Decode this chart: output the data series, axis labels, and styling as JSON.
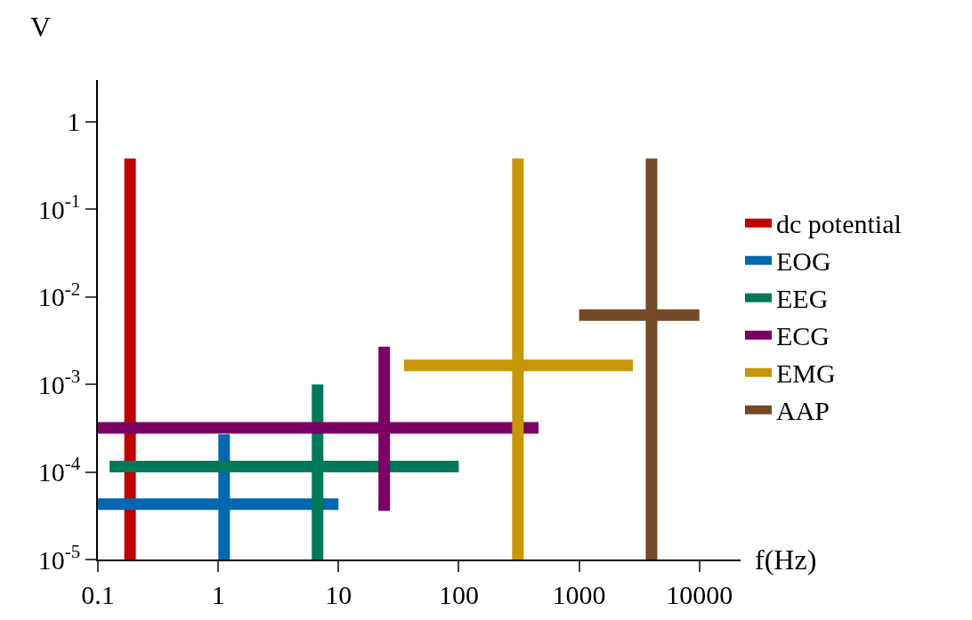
{
  "chart_data": {
    "type": "line",
    "xlabel": "f(Hz)",
    "ylabel": "V",
    "log": "xy",
    "xlim": [
      0.1,
      22000
    ],
    "ylim": [
      1e-05,
      3
    ],
    "xticks": [
      0.1,
      1,
      10,
      100,
      1000,
      10000
    ],
    "yticks": [
      {
        "value": 1e-05,
        "label": "10$^{-5}$"
      },
      {
        "value": 0.0001,
        "label": "10$^{-4}$"
      },
      {
        "value": 0.001,
        "label": "10$^{-3}$"
      },
      {
        "value": 0.01,
        "label": "10$^{-2}$"
      },
      {
        "value": 0.1,
        "label": "10$^{-1}$"
      },
      1
    ],
    "grid": false,
    "legend": "right",
    "marker": "none",
    "series": [
      {
        "name": "dc potential",
        "color": "#c00000",
        "x": [
          0.185,
          0.185
        ],
        "values": [
          1e-05,
          0.38
        ]
      },
      {
        "name": "EOG",
        "color": "#0068b0",
        "x": [
          0.1,
          10,
          null,
          1.12,
          1.12
        ],
        "values": [
          4.3e-05,
          4.3e-05,
          null,
          1e-05,
          0.00027
        ]
      },
      {
        "name": "EEG",
        "color": "#00785a",
        "x": [
          0.125,
          100,
          null,
          6.7,
          6.7
        ],
        "values": [
          0.000115,
          0.000115,
          null,
          1e-05,
          0.001
        ]
      },
      {
        "name": "ECG",
        "color": "#7a0064",
        "x": [
          0.1,
          460,
          null,
          24,
          24
        ],
        "values": [
          0.00032,
          0.00032,
          null,
          3.6e-05,
          0.0027
        ]
      },
      {
        "name": "EMG",
        "color": "#c8960a",
        "x": [
          35,
          2800,
          null,
          310,
          310
        ],
        "values": [
          0.00165,
          0.00165,
          null,
          1e-05,
          0.38
        ]
      },
      {
        "name": "AAP",
        "color": "#744a26",
        "x": [
          1000,
          10000,
          null,
          4000,
          4000
        ],
        "values": [
          0.0062,
          0.0062,
          null,
          1e-05,
          0.38
        ]
      }
    ]
  }
}
